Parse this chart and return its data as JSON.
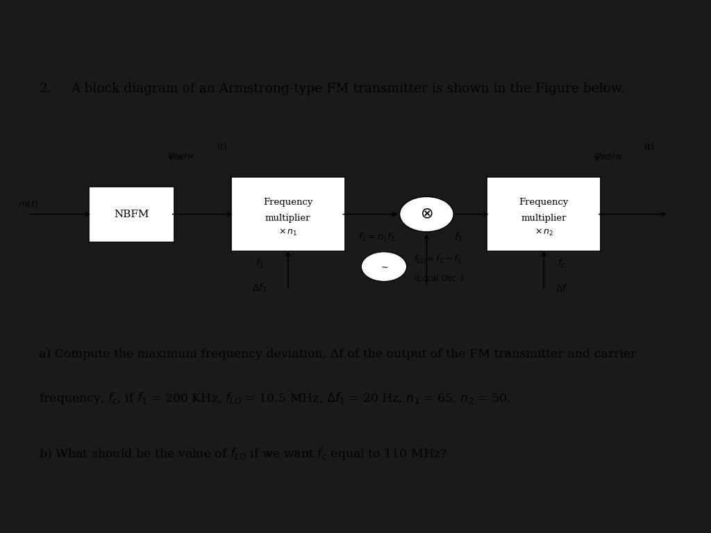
{
  "bg_outer": "#1a1a1a",
  "bg_inner": "#ffffff",
  "title_num": "2.",
  "title_text": "A block diagram of an Armstrong-type FM transmitter is shown in the Figure below.",
  "text_a1": "a) Compute the maximum frequency deviation, Δf of the output of the FM transmitter and carrier",
  "text_a2": "frequency, fₑ, if f₁ = 200 KHz, fᴸₒ = 10.5 MHz, Δf₁ = 20 Hz, n₁ = 65, n₂ = 50.",
  "text_b": "b) What should be the value of fᴸₒ if we want fₑ equal to 110 MHz?",
  "fontsize_title": 13.5,
  "fontsize_body": 12.5
}
